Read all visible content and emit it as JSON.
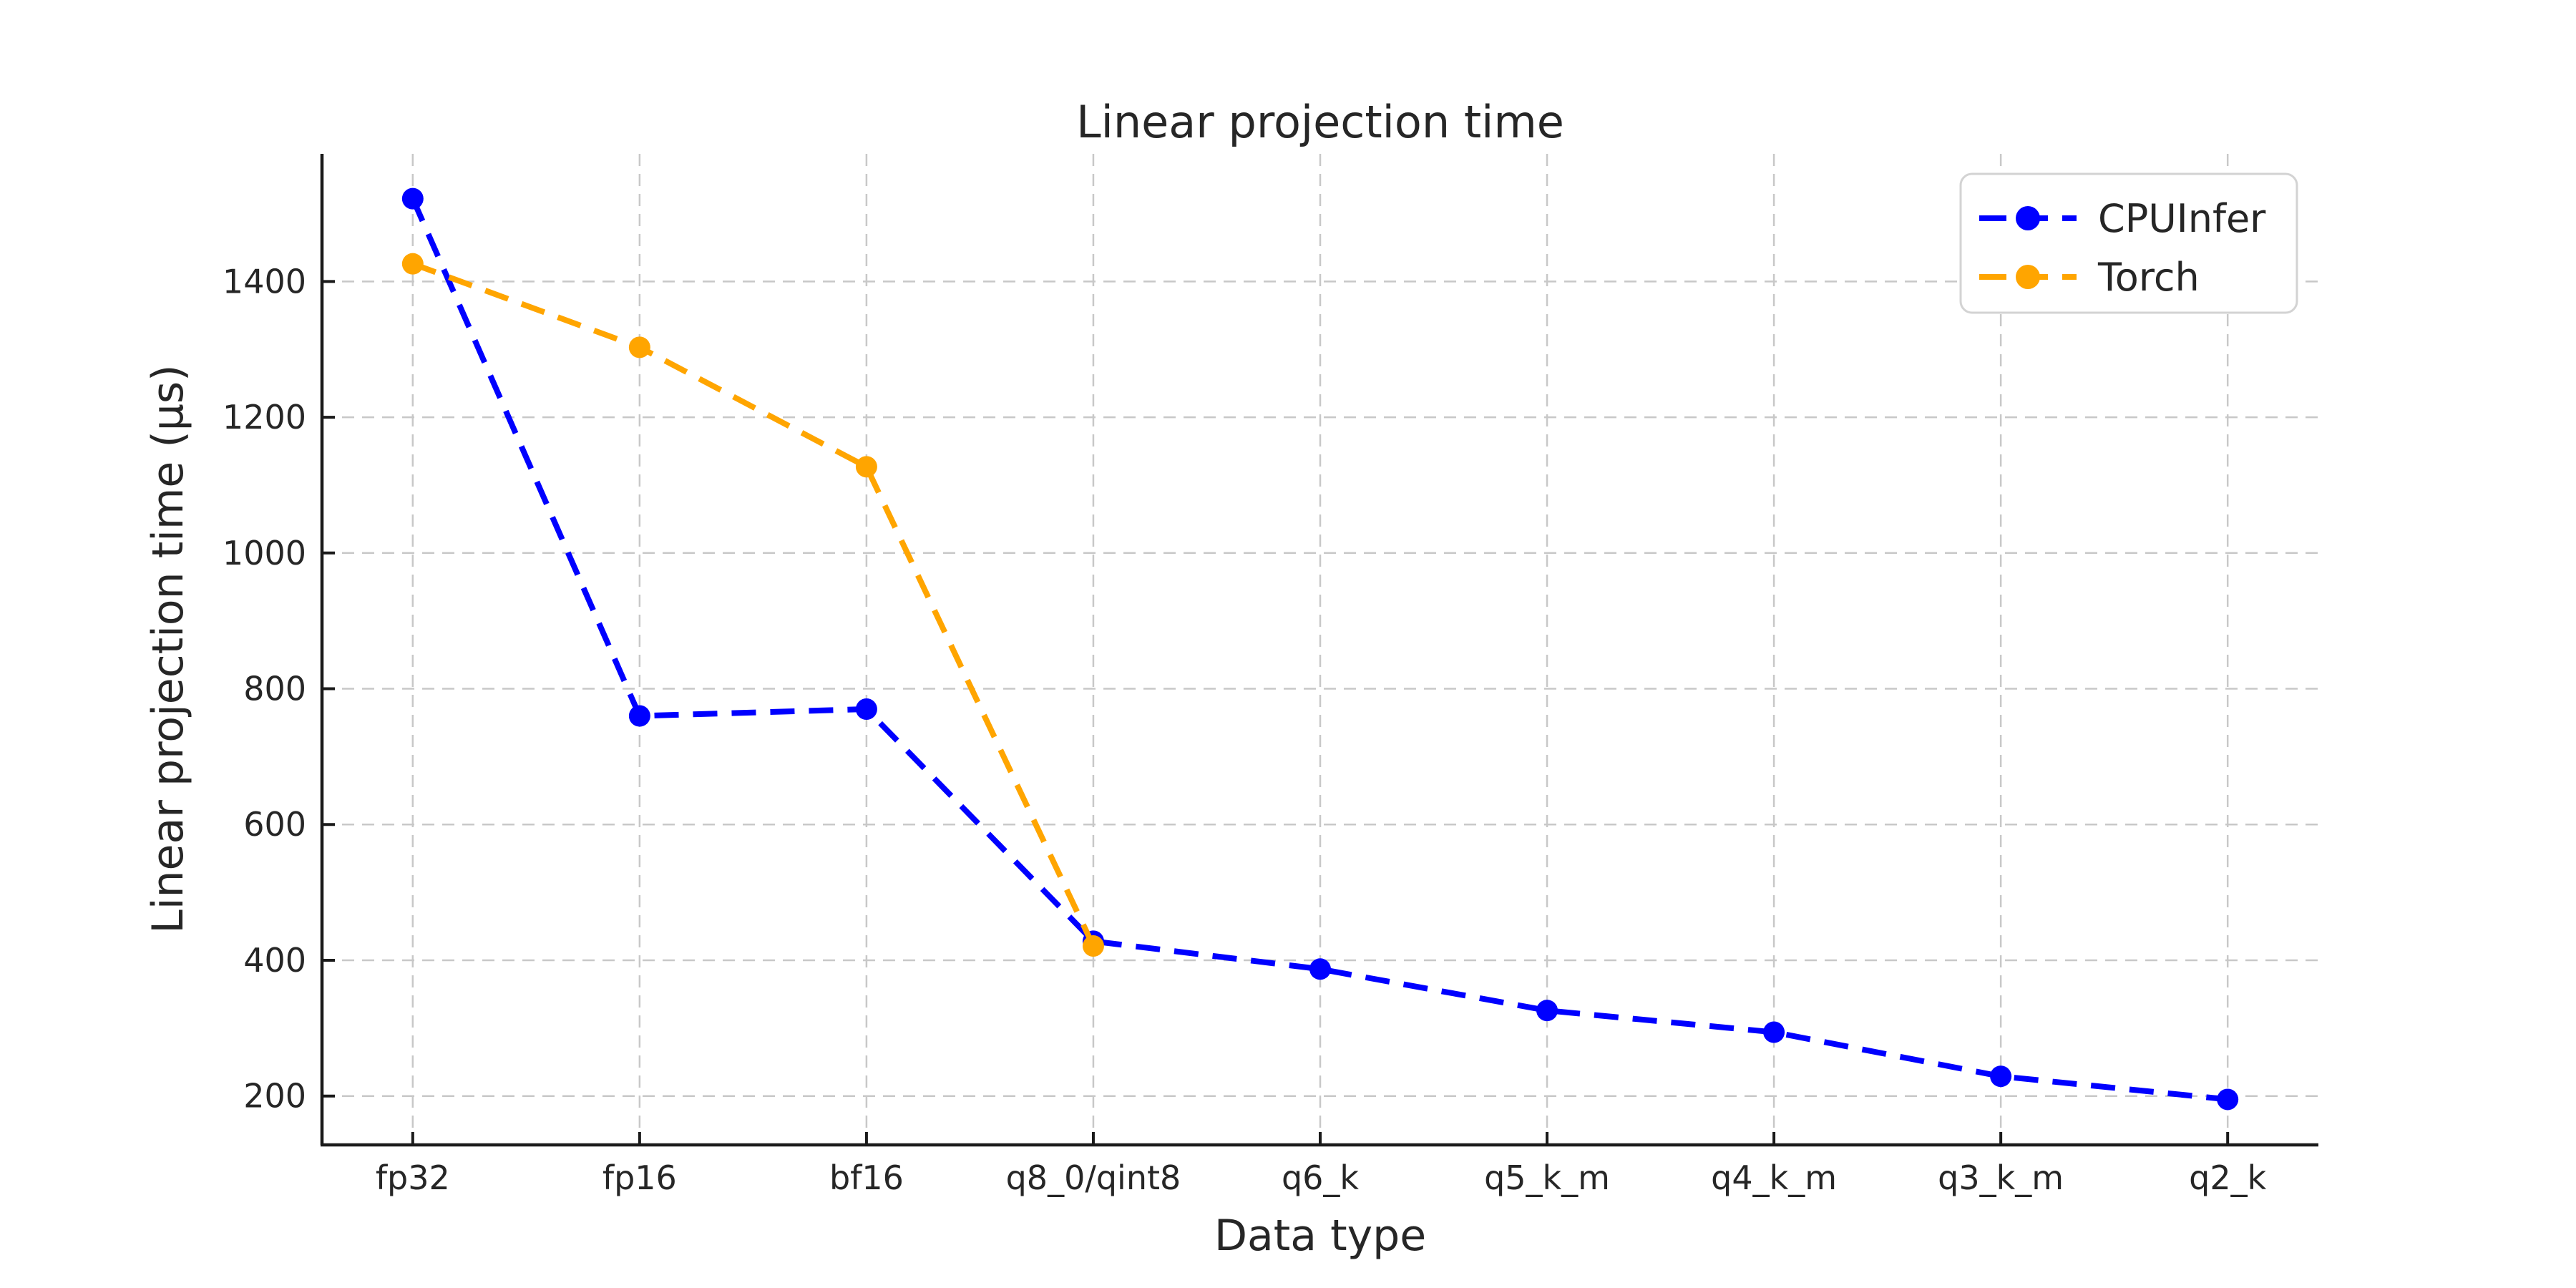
{
  "figure_title": "Linear projection time",
  "axes": {
    "x_label": "Data type",
    "y_label": "Linear projection time (μs)"
  },
  "legend": {
    "position": "upper right",
    "items": [
      {
        "label": "CPUInfer",
        "color": "#0000ff"
      },
      {
        "label": "Torch",
        "color": "#ffa500"
      }
    ]
  },
  "colors": {
    "cpuinfer": "#0000ff",
    "torch": "#ffa500",
    "grid": "#c8c8c8",
    "spine": "#1a1a1a",
    "text": "#262626",
    "legend_border": "#d3d3d3",
    "background": "#ffffff"
  },
  "chart_data": {
    "type": "line",
    "title": "Linear projection time",
    "xlabel": "Data type",
    "ylabel": "Linear projection time (μs)",
    "categories": [
      "fp32",
      "fp16",
      "bf16",
      "q8_0/qint8",
      "q6_k",
      "q5_k_m",
      "q4_k_m",
      "q3_k_m",
      "q2_k"
    ],
    "series": [
      {
        "name": "CPUInfer",
        "color": "#0000ff",
        "line_style": "dashed",
        "marker": "circle",
        "values": [
          1522,
          760,
          770,
          428,
          387,
          326,
          294,
          229,
          195
        ]
      },
      {
        "name": "Torch",
        "color": "#ffa500",
        "line_style": "dashed",
        "marker": "circle",
        "values": [
          1426,
          1303,
          1127,
          421,
          null,
          null,
          null,
          null,
          null
        ]
      }
    ],
    "yticks": [
      200,
      400,
      600,
      800,
      1000,
      1200,
      1400
    ],
    "ylim": [
      128,
      1588
    ],
    "xlim_padding": 0.4,
    "grid": true,
    "grid_style": "dashed",
    "legend_position": "upper right"
  }
}
